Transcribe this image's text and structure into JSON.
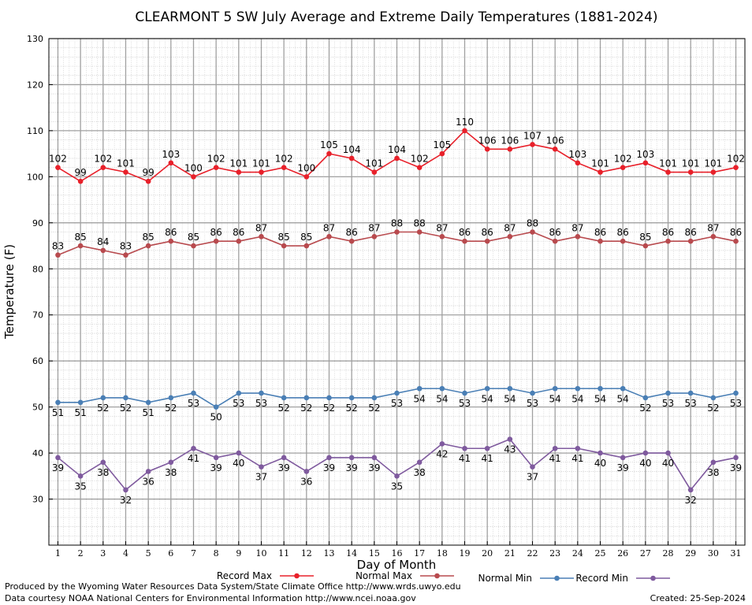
{
  "chart_data": {
    "type": "line",
    "title": "CLEARMONT 5 SW July Average and Extreme Daily Temperatures (1881-2024)",
    "xlabel": "Day of Month",
    "ylabel": "Temperature (F)",
    "ylim": [
      20,
      130
    ],
    "xlim": [
      0.6,
      31.4
    ],
    "yticks": [
      30,
      40,
      50,
      60,
      70,
      80,
      90,
      100,
      110,
      120,
      130
    ],
    "x": [
      1,
      2,
      3,
      4,
      5,
      6,
      7,
      8,
      9,
      10,
      11,
      12,
      13,
      14,
      15,
      16,
      17,
      18,
      19,
      20,
      21,
      22,
      23,
      24,
      25,
      26,
      27,
      28,
      29,
      30,
      31
    ],
    "grid": true,
    "legend_position": "bottom",
    "series": [
      {
        "name": "Record Max",
        "color": "#e8202a",
        "label_position": "above",
        "values": [
          102,
          99,
          102,
          101,
          99,
          103,
          100,
          102,
          101,
          101,
          102,
          100,
          105,
          104,
          101,
          104,
          102,
          105,
          110,
          106,
          106,
          107,
          106,
          103,
          101,
          102,
          103,
          101,
          101,
          101,
          102
        ]
      },
      {
        "name": "Normal Max",
        "color": "#b84a4e",
        "label_position": "above",
        "values": [
          83,
          85,
          84,
          83,
          85,
          86,
          85,
          86,
          86,
          87,
          85,
          85,
          87,
          86,
          87,
          88,
          88,
          87,
          86,
          86,
          87,
          88,
          86,
          87,
          86,
          86,
          85,
          86,
          86,
          87,
          86
        ]
      },
      {
        "name": "Normal Min",
        "color": "#4a7fb5",
        "label_position": "below",
        "values": [
          51,
          51,
          52,
          52,
          51,
          52,
          53,
          50,
          53,
          53,
          52,
          52,
          52,
          52,
          52,
          53,
          54,
          54,
          53,
          54,
          54,
          53,
          54,
          54,
          54,
          54,
          52,
          53,
          53,
          52,
          53
        ]
      },
      {
        "name": "Record Min",
        "color": "#7f5a9e",
        "label_position": "below",
        "values": [
          39,
          35,
          38,
          32,
          36,
          38,
          41,
          39,
          40,
          37,
          39,
          36,
          39,
          39,
          39,
          35,
          38,
          42,
          41,
          41,
          43,
          37,
          41,
          41,
          40,
          39,
          40,
          40,
          32,
          38,
          39
        ]
      }
    ]
  },
  "footer": {
    "produced_by": "Produced by the Wyoming Water Resources Data System/State Climate Office http://www.wrds.uwyo.edu",
    "data_courtesy": "Data courtesy NOAA National Centers for Environmental Information http://www.ncei.noaa.gov",
    "created": "Created:  25-Sep-2024"
  }
}
